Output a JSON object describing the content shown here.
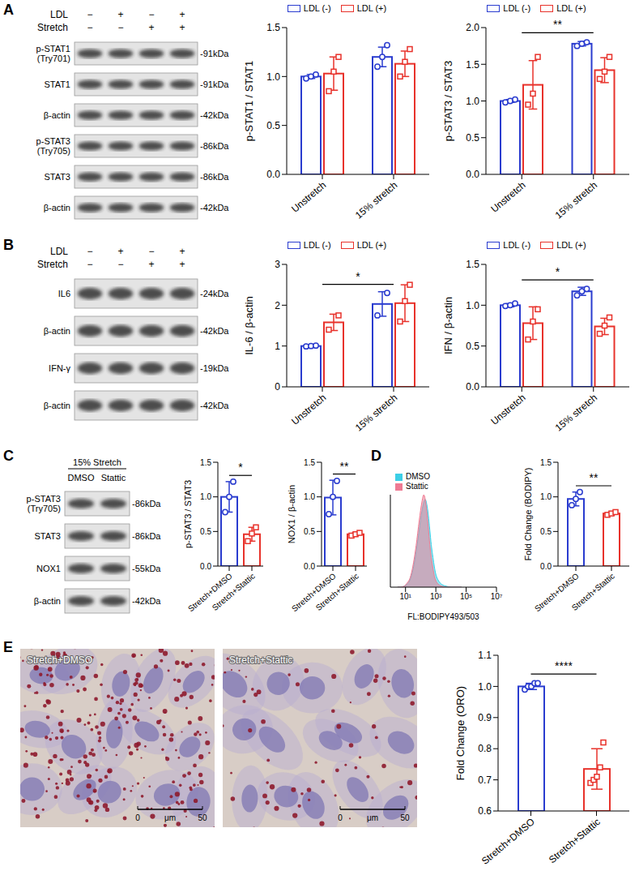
{
  "panel_letters": [
    "A",
    "B",
    "C",
    "D",
    "E"
  ],
  "blots": [
    {
      "header": [
        {
          "label": "LDL",
          "signs": [
            "−",
            "+",
            "−",
            "+"
          ]
        },
        {
          "label": "Stretch",
          "signs": [
            "−",
            "−",
            "+",
            "+"
          ]
        }
      ],
      "rows": [
        {
          "label": "p-STAT1 (Try701)",
          "size": "-91kDa"
        },
        {
          "label": "STAT1",
          "size": "-91kDa"
        },
        {
          "label": "β-actin",
          "size": "-42kDa"
        },
        {
          "label": "p-STAT3 (Try705)",
          "size": "-86kDa"
        },
        {
          "label": "STAT3",
          "size": "-86kDa"
        },
        {
          "label": "β-actin",
          "size": "-42kDa"
        }
      ]
    },
    {
      "header": [
        {
          "label": "LDL",
          "signs": [
            "−",
            "+",
            "−",
            "+"
          ]
        },
        {
          "label": "Stretch",
          "signs": [
            "−",
            "−",
            "+",
            "+"
          ]
        }
      ],
      "rows": [
        {
          "label": "IL6",
          "size": "-24kDa"
        },
        {
          "label": "β-actin",
          "size": "-42kDa"
        },
        {
          "label": "IFN-γ",
          "size": "-19kDa"
        },
        {
          "label": "β-actin",
          "size": "-42kDa"
        }
      ]
    },
    {
      "title": "15% Stretch",
      "lanes": [
        "DMSO",
        "Stattic"
      ],
      "rows": [
        {
          "label": "p-STAT3 (Try705)",
          "size": "-86kDa"
        },
        {
          "label": "STAT3",
          "size": "-86kDa"
        },
        {
          "label": "NOX1",
          "size": "-55kDa"
        },
        {
          "label": "β-actin",
          "size": "-42kDa"
        }
      ]
    }
  ],
  "images": {
    "panels": [
      "Stretch+DMSO",
      "Stretch+Stattic"
    ],
    "scale_bar": {
      "start": 0,
      "end": 50,
      "unit": "μm"
    }
  },
  "chart_data": [
    {
      "type": "bar",
      "ylabel": "p-STAT1 / STAT1",
      "categories": [
        "Unstretch",
        "15% stretch"
      ],
      "ylim": [
        0,
        1.5
      ],
      "yticks": [
        {
          "value": 0,
          "label": "0.0"
        },
        0.5,
        {
          "value": 1,
          "label": "1.0"
        },
        1.5
      ],
      "legend": "top",
      "series": [
        {
          "name": "LDL (-)",
          "color": "#2a3ccf",
          "values": [
            1.0,
            1.2
          ],
          "error": [
            0.02,
            0.1
          ],
          "points": [
            [
              0.98,
              1.0,
              1.02
            ],
            [
              1.1,
              1.2,
              1.32
            ]
          ]
        },
        {
          "name": "LDL (+)",
          "color": "#e8322b",
          "values": [
            1.03,
            1.13
          ],
          "error": [
            0.17,
            0.13
          ],
          "points": [
            [
              0.85,
              1.05,
              1.2
            ],
            [
              1.0,
              1.15,
              1.28
            ]
          ]
        }
      ],
      "annotations": []
    },
    {
      "type": "bar",
      "ylabel": "p-STAT3 / STAT3",
      "categories": [
        "Unstretch",
        "15% stretch"
      ],
      "ylim": [
        0,
        2
      ],
      "yticks": [
        {
          "value": 0,
          "label": "0.0"
        },
        0.5,
        {
          "value": 1,
          "label": "1.0"
        },
        1.5,
        {
          "value": 2,
          "label": "2.0"
        }
      ],
      "legend": "top",
      "series": [
        {
          "name": "LDL (-)",
          "color": "#2a3ccf",
          "values": [
            1.0,
            1.78
          ],
          "error": [
            0.02,
            0.03
          ],
          "points": [
            [
              0.98,
              1.0,
              1.02
            ],
            [
              1.75,
              1.78,
              1.8
            ]
          ]
        },
        {
          "name": "LDL (+)",
          "color": "#e8322b",
          "values": [
            1.22,
            1.42
          ],
          "error": [
            0.33,
            0.17
          ],
          "points": [
            [
              0.95,
              1.1,
              1.6
            ],
            [
              1.3,
              1.4,
              1.6
            ]
          ]
        }
      ],
      "annotations": [
        {
          "text": "**",
          "between": [
            "Unstretch",
            "15% stretch"
          ],
          "series": "LDL (-)"
        }
      ]
    },
    {
      "type": "bar",
      "ylabel": "IL-6 / β-actin",
      "categories": [
        "Unstretch",
        "15% stretch"
      ],
      "ylim": [
        0,
        3
      ],
      "yticks": [
        0,
        1,
        2,
        3
      ],
      "legend": "top",
      "series": [
        {
          "name": "LDL (-)",
          "color": "#2a3ccf",
          "values": [
            1.0,
            2.03
          ],
          "error": [
            0.01,
            0.3
          ],
          "points": [
            [
              0.99,
              1.0,
              1.01
            ],
            [
              1.75,
              2.3
            ]
          ]
        },
        {
          "name": "LDL (+)",
          "color": "#e8322b",
          "values": [
            1.58,
            2.05
          ],
          "error": [
            0.2,
            0.45
          ],
          "points": [
            [
              1.4,
              1.75
            ],
            [
              1.6,
              2.1,
              2.5
            ]
          ]
        }
      ],
      "annotations": [
        {
          "text": "*",
          "between": [
            "Unstretch",
            "15% stretch"
          ],
          "series": "LDL (-)"
        }
      ]
    },
    {
      "type": "bar",
      "ylabel": "IFN / β-actin",
      "categories": [
        "Unstretch",
        "15% stretch"
      ],
      "ylim": [
        0,
        1.5
      ],
      "yticks": [
        {
          "value": 0,
          "label": "0.0"
        },
        0.5,
        {
          "value": 1,
          "label": "1.0"
        },
        1.5
      ],
      "legend": "top",
      "series": [
        {
          "name": "LDL (-)",
          "color": "#2a3ccf",
          "values": [
            1.0,
            1.17
          ],
          "error": [
            0.02,
            0.05
          ],
          "points": [
            [
              0.99,
              1.0,
              1.02
            ],
            [
              1.12,
              1.17,
              1.2
            ]
          ]
        },
        {
          "name": "LDL (+)",
          "color": "#e8322b",
          "values": [
            0.78,
            0.74
          ],
          "error": [
            0.2,
            0.1
          ],
          "points": [
            [
              0.58,
              0.8,
              0.95
            ],
            [
              0.65,
              0.75,
              0.85
            ]
          ]
        }
      ],
      "annotations": [
        {
          "text": "*",
          "between": [
            "Unstretch",
            "15% stretch"
          ],
          "series": "LDL (-)"
        }
      ]
    },
    {
      "type": "bar",
      "ylabel": "p-STAT3 / STAT3",
      "categories": [
        "Stretch+DMSO",
        "Stretch+Stattic"
      ],
      "ylim": [
        0,
        1.5
      ],
      "yticks": [
        {
          "value": 0,
          "label": "0.0"
        },
        0.5,
        {
          "value": 1,
          "label": "1.0"
        },
        1.5
      ],
      "series": [
        {
          "colors": [
            "#2a3ccf",
            "#e8322b"
          ],
          "values": [
            1.0,
            0.46
          ],
          "error": [
            0.22,
            0.1
          ],
          "points": [
            [
              0.78,
              1.0,
              1.22
            ],
            [
              0.36,
              0.47,
              0.56
            ]
          ]
        }
      ],
      "annotations": [
        {
          "text": "*",
          "between": [
            "Stretch+DMSO",
            "Stretch+Stattic"
          ]
        }
      ]
    },
    {
      "type": "bar",
      "ylabel": "NOX1 / β-actin",
      "categories": [
        "Stretch+DMSO",
        "Stretch+Stattic"
      ],
      "ylim": [
        0,
        1.5
      ],
      "yticks": [
        {
          "value": 0,
          "label": "0.0"
        },
        0.5,
        {
          "value": 1,
          "label": "1.0"
        },
        1.5
      ],
      "series": [
        {
          "colors": [
            "#2a3ccf",
            "#e8322b"
          ],
          "values": [
            0.99,
            0.46
          ],
          "error": [
            0.25,
            0.02
          ],
          "points": [
            [
              0.75,
              1.0,
              1.23
            ],
            [
              0.44,
              0.46,
              0.48
            ]
          ]
        }
      ],
      "annotations": [
        {
          "text": "**",
          "between": [
            "Stretch+DMSO",
            "Stretch+Stattic"
          ]
        }
      ]
    },
    {
      "type": "area",
      "xlabel": "FL:BODIPY493/503",
      "log": "x",
      "xlim": [
        1,
        10000000
      ],
      "xticks": [
        {
          "value": 10,
          "label": "10¹"
        },
        {
          "value": 1000,
          "label": "10³"
        },
        {
          "value": 100000,
          "label": "10⁵"
        },
        {
          "value": 10000000,
          "label": "10⁷"
        }
      ],
      "ylim": [
        0,
        100
      ],
      "tick_labels": "x",
      "legend": "top-left",
      "x": [
        3,
        5,
        8,
        12,
        20,
        30,
        50,
        80,
        120,
        160,
        200,
        250,
        320,
        400,
        500,
        650,
        800,
        1000,
        1500,
        2500,
        5000,
        10000,
        50000
      ],
      "series": [
        {
          "name": "DMSO",
          "color": "#3ccfe6",
          "values": [
            0,
            0,
            1,
            3,
            8,
            18,
            38,
            62,
            82,
            92,
            95,
            90,
            78,
            62,
            46,
            32,
            22,
            14,
            7,
            3,
            1,
            0,
            0
          ]
        },
        {
          "name": "Stattic",
          "color": "#ef7b93",
          "values": [
            0,
            0,
            1,
            4,
            10,
            22,
            45,
            72,
            92,
            100,
            95,
            82,
            64,
            46,
            32,
            20,
            12,
            7,
            3,
            1,
            0,
            0,
            0
          ]
        }
      ]
    },
    {
      "type": "bar",
      "ylabel": "Fold Change (BODIPY)",
      "categories": [
        "Stretch+DMSO",
        "Stretch+Stattic"
      ],
      "ylim": [
        0,
        1.5
      ],
      "yticks": [
        {
          "value": 0,
          "label": "0.0"
        },
        0.5,
        {
          "value": 1,
          "label": "1.0"
        },
        1.5
      ],
      "series": [
        {
          "colors": [
            "#2a3ccf",
            "#e8322b"
          ],
          "values": [
            0.97,
            0.76
          ],
          "error": [
            0.1,
            0.02
          ],
          "points": [
            [
              0.88,
              0.97,
              1.07
            ],
            [
              0.74,
              0.76,
              0.78
            ]
          ]
        }
      ],
      "annotations": [
        {
          "text": "**",
          "between": [
            "Stretch+DMSO",
            "Stretch+Stattic"
          ]
        }
      ]
    },
    {
      "type": "bar",
      "ylabel": "Fold Change (ORO)",
      "categories": [
        "Stretch+DMSO",
        "Stretch+Stattic"
      ],
      "ylim": [
        0.6,
        1.1
      ],
      "yticks": [
        0.6,
        0.7,
        0.8,
        0.9,
        {
          "value": 1,
          "label": "1.0"
        },
        1.1
      ],
      "series": [
        {
          "colors": [
            "#2a3ccf",
            "#e8322b"
          ],
          "values": [
            1.0,
            0.735
          ],
          "error": [
            0.01,
            0.065
          ],
          "points": [
            [
              0.99,
              1.0,
              1.0,
              1.01,
              1.01
            ],
            [
              0.69,
              0.7,
              0.71,
              0.74,
              0.82
            ]
          ]
        }
      ],
      "annotations": [
        {
          "text": "****",
          "between": [
            "Stretch+DMSO",
            "Stretch+Stattic"
          ]
        }
      ]
    }
  ]
}
